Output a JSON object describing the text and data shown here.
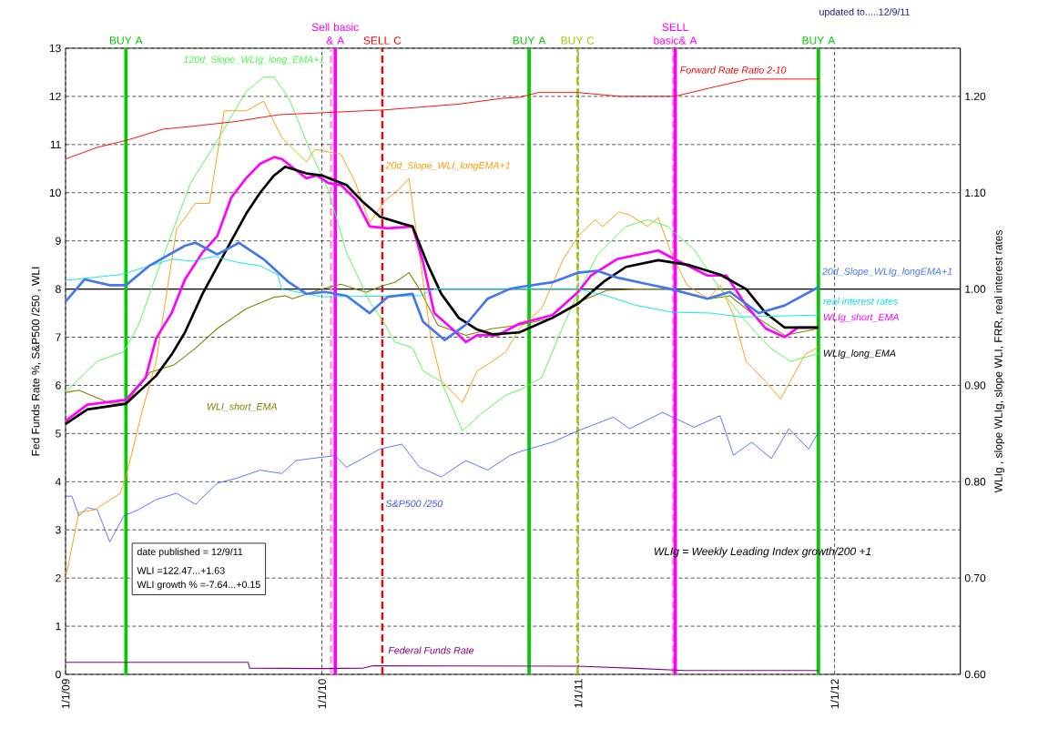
{
  "chart_data": {
    "type": "line",
    "ylabel": "Fed Funds Rate %,    S&P500 /250 ,   WLI",
    "y2label": "WLIg , slope WLIg, slope WLI, FRR, real interest rates",
    "xlim": [
      "2009-01-01",
      "2012-06-28"
    ],
    "xticks": [
      {
        "value": "2009-01-01",
        "label": "1/1/09"
      },
      {
        "value": "2010-01-01",
        "label": "1/1/10"
      },
      {
        "value": "2011-01-01",
        "label": "1/1/11"
      },
      {
        "value": "2012-01-01",
        "label": "1/1/12"
      }
    ],
    "ylim": [
      0,
      13
    ],
    "yticks": [
      0,
      1,
      2,
      3,
      4,
      5,
      6,
      7,
      8,
      9,
      10,
      11,
      12,
      13
    ],
    "y2lim": [
      0.6,
      1.25
    ],
    "y2ticks": [
      {
        "value": 0.6,
        "label": "0.60"
      },
      {
        "value": 0.7,
        "label": "0.70"
      },
      {
        "value": 0.8,
        "label": "0.80"
      },
      {
        "value": 0.9,
        "label": "0.90"
      },
      {
        "value": 1.0,
        "label": "1.00"
      },
      {
        "value": 1.1,
        "label": "1.10"
      },
      {
        "value": 1.2,
        "label": "1.20"
      }
    ],
    "grid": true,
    "series": [
      {
        "name": "Federal Funds Rate",
        "color": "#800080",
        "x": [
          "2009-01-01",
          "2009-09-18",
          "2009-09-20",
          "2010-01-01",
          "2010-03-01",
          "2010-03-15",
          "2011-01-01",
          "2011-04-01",
          "2011-06-01",
          "2011-12-09"
        ],
        "values": [
          0.25,
          0.25,
          0.13,
          0.12,
          0.13,
          0.18,
          0.17,
          0.12,
          0.08,
          0.08
        ]
      },
      {
        "name": "S&P500 /250",
        "color": "#3355ff",
        "x": [
          "2009-01-01",
          "2009-01-10",
          "2009-01-20",
          "2009-02-01",
          "2009-02-15",
          "2009-03-05",
          "2009-03-25",
          "2009-04-15",
          "2009-05-10",
          "2009-06-08",
          "2009-07-05",
          "2009-08-05",
          "2009-09-01",
          "2009-10-05",
          "2009-11-05",
          "2009-11-25",
          "2010-01-01",
          "2010-01-20",
          "2010-02-05",
          "2010-03-25",
          "2010-04-25",
          "2010-05-20",
          "2010-06-20",
          "2010-07-25",
          "2010-08-25",
          "2010-09-25",
          "2010-10-09",
          "2010-11-25",
          "2011-01-01",
          "2011-02-20",
          "2011-03-15",
          "2011-05-01",
          "2011-06-15",
          "2011-07-22",
          "2011-08-10",
          "2011-09-05",
          "2011-10-03",
          "2011-10-28",
          "2011-11-25",
          "2011-12-09"
        ],
        "values": [
          3.7,
          3.7,
          3.29,
          3.46,
          3.42,
          2.75,
          3.29,
          3.42,
          3.63,
          3.76,
          3.53,
          3.97,
          4.07,
          4.24,
          4.17,
          4.44,
          4.51,
          4.54,
          4.3,
          4.68,
          4.78,
          4.3,
          4.1,
          4.44,
          4.24,
          4.54,
          4.62,
          4.82,
          5.06,
          5.34,
          5.1,
          5.44,
          5.13,
          5.37,
          4.55,
          4.82,
          4.48,
          5.1,
          4.68,
          5.03
        ]
      },
      {
        "name": "WLI_short_EMA",
        "color": "#808000",
        "x": [
          "2009-01-01",
          "2009-01-20",
          "2009-03-05",
          "2009-03-28",
          "2009-05-01",
          "2009-06-05",
          "2009-07-05",
          "2009-08-05",
          "2009-09-15",
          "2009-10-25",
          "2009-11-10",
          "2009-11-20",
          "2010-01-01",
          "2010-01-28",
          "2010-03-05",
          "2010-03-28",
          "2010-04-15",
          "2010-05-05",
          "2010-05-20",
          "2010-06-15",
          "2010-07-25",
          "2010-09-01",
          "2010-10-09",
          "2010-11-25",
          "2011-01-01",
          "2011-02-10",
          "2011-03-25",
          "2011-05-13",
          "2011-07-04",
          "2011-08-05",
          "2011-09-15",
          "2011-10-22",
          "2011-12-09"
        ],
        "values": [
          5.85,
          5.9,
          5.63,
          5.63,
          6.27,
          6.43,
          6.77,
          7.18,
          7.59,
          7.83,
          7.86,
          7.8,
          8.0,
          8.1,
          7.93,
          8.07,
          8.14,
          8.34,
          8.0,
          7.25,
          7.04,
          7.18,
          7.25,
          7.4,
          7.73,
          7.97,
          8.0,
          8.0,
          7.79,
          7.86,
          7.38,
          7.04,
          7.18
        ]
      },
      {
        "name": "20d_Slope_WLI_longEMA+1",
        "color": "#ff9900",
        "axis": "y2",
        "x": [
          "2009-01-01",
          "2009-01-20",
          "2009-02-12",
          "2009-03-20",
          "2009-03-28",
          "2009-04-20",
          "2009-05-10",
          "2009-06-08",
          "2009-07-05",
          "2009-07-25",
          "2009-08-15",
          "2009-09-15",
          "2009-10-10",
          "2009-11-05",
          "2009-12-10",
          "2009-12-22",
          "2010-01-28",
          "2010-02-18",
          "2010-03-10",
          "2010-04-01",
          "2010-04-20",
          "2010-05-05",
          "2010-05-15",
          "2010-06-05",
          "2010-06-20",
          "2010-07-20",
          "2010-08-10",
          "2010-09-01",
          "2010-09-20",
          "2010-10-09",
          "2010-11-10",
          "2010-12-10",
          "2011-01-01",
          "2011-01-25",
          "2011-02-05",
          "2011-02-28",
          "2011-03-15",
          "2011-04-10",
          "2011-04-25",
          "2011-05-13",
          "2011-06-05",
          "2011-07-05",
          "2011-07-22",
          "2011-08-10",
          "2011-08-28",
          "2011-09-25",
          "2011-10-16",
          "2011-11-20",
          "2011-12-09"
        ],
        "values": [
          0.7,
          0.768,
          0.771,
          0.788,
          0.805,
          0.873,
          0.925,
          1.062,
          1.089,
          1.089,
          1.185,
          1.185,
          1.195,
          1.157,
          1.132,
          1.145,
          1.14,
          1.11,
          1.069,
          1.092,
          1.103,
          1.115,
          1.062,
          0.95,
          0.905,
          0.882,
          0.915,
          0.925,
          0.935,
          0.959,
          0.98,
          1.03,
          1.055,
          1.072,
          1.065,
          1.08,
          1.077,
          1.065,
          1.074,
          1.038,
          1.004,
          0.99,
          1.004,
          0.973,
          0.925,
          0.904,
          0.886,
          0.932,
          0.94
        ]
      },
      {
        "name": "120d_Slope_WLIg_long_EMA+1",
        "color": "#44ff44",
        "axis": "y2",
        "x": [
          "2009-01-01",
          "2009-02-15",
          "2009-03-25",
          "2009-04-15",
          "2009-05-20",
          "2009-06-28",
          "2009-08-05",
          "2009-09-15",
          "2009-10-10",
          "2009-10-25",
          "2009-11-15",
          "2009-12-15",
          "2010-01-10",
          "2010-02-05",
          "2010-03-10",
          "2010-04-01",
          "2010-04-15",
          "2010-05-10",
          "2010-05-25",
          "2010-06-20",
          "2010-07-20",
          "2010-08-20",
          "2010-09-20",
          "2010-10-09",
          "2010-11-10",
          "2010-12-05",
          "2011-01-01",
          "2011-01-28",
          "2011-03-10",
          "2011-04-10",
          "2011-05-08",
          "2011-06-15",
          "2011-07-22",
          "2011-08-28",
          "2011-10-01",
          "2011-10-30",
          "2011-12-09"
        ],
        "values": [
          0.893,
          0.925,
          0.935,
          0.963,
          1.034,
          1.11,
          1.154,
          1.205,
          1.22,
          1.22,
          1.198,
          1.144,
          1.103,
          1.038,
          0.987,
          0.963,
          0.945,
          0.939,
          0.915,
          0.904,
          0.853,
          0.873,
          0.89,
          0.895,
          0.908,
          0.952,
          0.997,
          1.035,
          1.065,
          1.072,
          1.065,
          1.041,
          1.0,
          0.966,
          0.939,
          0.925,
          0.933
        ]
      },
      {
        "name": "WLIg_short_EMA",
        "color": "#ff00ff",
        "axis": "y2",
        "x": [
          "2009-01-01",
          "2009-02-01",
          "2009-03-28",
          "2009-04-25",
          "2009-05-10",
          "2009-06-01",
          "2009-06-20",
          "2009-07-15",
          "2009-08-05",
          "2009-08-25",
          "2009-09-15",
          "2009-10-05",
          "2009-10-25",
          "2009-11-05",
          "2009-12-10",
          "2009-12-25",
          "2010-01-10",
          "2010-01-28",
          "2010-02-18",
          "2010-03-10",
          "2010-04-05",
          "2010-05-10",
          "2010-05-25",
          "2010-06-10",
          "2010-07-05",
          "2010-07-25",
          "2010-08-10",
          "2010-09-08",
          "2010-10-09",
          "2010-11-25",
          "2011-01-01",
          "2011-01-19",
          "2011-02-25",
          "2011-03-23",
          "2011-04-25",
          "2011-05-18",
          "2011-07-04",
          "2011-07-31",
          "2011-08-28",
          "2011-09-25",
          "2011-10-22",
          "2011-11-10",
          "2011-12-09"
        ],
        "values": [
          0.863,
          0.88,
          0.885,
          0.908,
          0.949,
          0.975,
          1.01,
          1.038,
          1.055,
          1.095,
          1.115,
          1.13,
          1.137,
          1.135,
          1.115,
          1.118,
          1.11,
          1.108,
          1.093,
          1.065,
          1.063,
          1.065,
          1.028,
          0.975,
          0.959,
          0.945,
          0.952,
          0.952,
          0.964,
          0.973,
          0.997,
          1.014,
          1.031,
          1.035,
          1.04,
          1.031,
          1.014,
          1.014,
          0.983,
          0.959,
          0.95,
          0.96,
          0.96
        ]
      },
      {
        "name": "WLIg_long_EMA",
        "color": "#000000",
        "axis": "y2",
        "x": [
          "2009-01-01",
          "2009-02-01",
          "2009-03-28",
          "2009-05-10",
          "2009-06-01",
          "2009-06-20",
          "2009-07-15",
          "2009-08-25",
          "2009-09-15",
          "2009-10-05",
          "2009-10-25",
          "2009-11-10",
          "2009-12-10",
          "2010-01-01",
          "2010-02-05",
          "2010-03-01",
          "2010-03-25",
          "2010-04-25",
          "2010-05-10",
          "2010-06-01",
          "2010-06-20",
          "2010-07-15",
          "2010-08-10",
          "2010-09-01",
          "2010-10-09",
          "2010-11-25",
          "2011-01-01",
          "2011-02-07",
          "2011-03-10",
          "2011-04-25",
          "2011-06-07",
          "2011-07-22",
          "2011-08-28",
          "2011-09-25",
          "2011-10-22",
          "2011-12-09"
        ],
        "values": [
          0.86,
          0.875,
          0.881,
          0.91,
          0.932,
          0.955,
          0.995,
          1.05,
          1.078,
          1.1,
          1.118,
          1.127,
          1.12,
          1.118,
          1.108,
          1.09,
          1.075,
          1.068,
          1.065,
          1.025,
          0.995,
          0.97,
          0.958,
          0.953,
          0.955,
          0.97,
          0.985,
          1.008,
          1.023,
          1.03,
          1.025,
          1.015,
          1.0,
          0.975,
          0.96,
          0.96
        ]
      },
      {
        "name": "real interest rates",
        "color": "#00e5ee",
        "axis": "y2",
        "x": [
          "2009-01-01",
          "2009-03-20",
          "2009-05-01",
          "2009-06-01",
          "2009-07-01",
          "2009-08-01",
          "2009-09-01",
          "2009-10-05",
          "2009-10-30",
          "2009-11-05",
          "2010-01-01",
          "2010-05-20",
          "2010-06-10",
          "2010-10-09",
          "2011-01-01",
          "2011-02-10",
          "2011-03-25",
          "2011-05-15",
          "2011-07-10",
          "2011-08-20",
          "2011-12-09"
        ],
        "values": [
          1.009,
          1.015,
          1.024,
          1.031,
          1.029,
          1.034,
          1.028,
          1.024,
          1.015,
          1.0,
          0.992,
          0.993,
          1.0,
          1.0,
          1.0,
          0.993,
          0.983,
          0.976,
          0.975,
          0.971,
          0.973
        ]
      },
      {
        "name": "20d_Slope_WLIg_longEMA+1",
        "color": "#4477ee",
        "axis": "y2",
        "x": [
          "2009-01-01",
          "2009-01-28",
          "2009-03-05",
          "2009-03-28",
          "2009-04-30",
          "2009-06-20",
          "2009-07-05",
          "2009-08-05",
          "2009-09-05",
          "2009-10-10",
          "2009-11-15",
          "2009-12-10",
          "2010-01-05",
          "2010-02-05",
          "2010-03-10",
          "2010-04-05",
          "2010-05-10",
          "2010-05-25",
          "2010-06-25",
          "2010-07-25",
          "2010-08-25",
          "2010-09-25",
          "2010-10-09",
          "2010-11-25",
          "2011-01-01",
          "2011-01-28",
          "2011-02-25",
          "2011-04-10",
          "2011-05-13",
          "2011-07-04",
          "2011-08-05",
          "2011-09-15",
          "2011-10-22",
          "2011-12-09"
        ],
        "values": [
          0.987,
          1.01,
          1.004,
          1.004,
          1.024,
          1.045,
          1.048,
          1.036,
          1.048,
          1.031,
          1.007,
          0.995,
          0.997,
          0.993,
          0.975,
          0.992,
          0.995,
          0.966,
          0.947,
          0.963,
          0.99,
          1.0,
          1.002,
          1.007,
          1.017,
          1.019,
          1.012,
          1.005,
          1.0,
          0.99,
          0.997,
          0.975,
          0.983,
          1.002
        ]
      },
      {
        "name": "Forward Rate Ratio 2-10",
        "color": "#ff0000",
        "axis": "y2",
        "x": [
          "2009-01-01",
          "2009-02-15",
          "2009-04-01",
          "2009-05-20",
          "2009-07-01",
          "2009-09-01",
          "2009-11-01",
          "2010-01-01",
          "2010-04-01",
          "2010-07-15",
          "2010-09-15",
          "2010-10-09",
          "2010-11-05",
          "2011-01-01",
          "2011-03-01",
          "2011-05-18",
          "2011-07-15",
          "2011-09-01",
          "2011-12-09"
        ],
        "values": [
          1.135,
          1.147,
          1.155,
          1.166,
          1.169,
          1.174,
          1.181,
          1.183,
          1.186,
          1.192,
          1.198,
          1.199,
          1.204,
          1.204,
          1.2,
          1.2,
          1.21,
          1.218,
          1.218
        ]
      }
    ],
    "ref_lines": [
      {
        "axis": "y",
        "value": 8,
        "color": "#000000"
      },
      {
        "axis": "x",
        "value": "2009-03-28",
        "label": "BUY A",
        "color": "#00cc00"
      },
      {
        "axis": "x",
        "value": "2010-01-14",
        "color": "#ff99cc",
        "line_style": "dashed"
      },
      {
        "axis": "x",
        "value": "2010-01-20",
        "label": "Sell basic & A",
        "color": "#ff00ff"
      },
      {
        "axis": "x",
        "value": "2010-03-28",
        "label": "SELL C",
        "color": "#ff0000",
        "line_style": "dashed"
      },
      {
        "axis": "x",
        "value": "2010-10-23",
        "label": "BUY A",
        "color": "#00cc00"
      },
      {
        "axis": "x",
        "value": "2010-12-31",
        "label": "BUY C",
        "color": "#99cc00",
        "line_style": "dashed"
      },
      {
        "axis": "x",
        "value": "2011-05-16",
        "color": "#ff99cc",
        "line_style": "dashed"
      },
      {
        "axis": "x",
        "value": "2011-05-19",
        "label": "SELL basic& A",
        "color": "#ff00ff"
      },
      {
        "axis": "x",
        "value": "2011-12-09",
        "label": "BUY A",
        "color": "#00cc00"
      }
    ],
    "annotations": [
      "updated to.....12/9/11",
      "date published =  12/9/11",
      "WLI =122.47...+1.63",
      "WLI growth % =-7.64...+0.15",
      "WLIg = Weekly Leading Index growth/200 +1"
    ]
  }
}
